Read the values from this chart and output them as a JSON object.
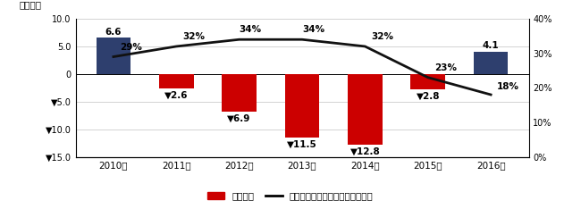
{
  "years": [
    "2010年",
    "2011年",
    "2012年",
    "2013年",
    "2014年",
    "2015年",
    "2016年"
  ],
  "trade_balance": [
    6.6,
    -2.6,
    -6.9,
    -11.5,
    -12.8,
    -2.8,
    4.1
  ],
  "mineral_ratio": [
    29,
    32,
    34,
    34,
    32,
    23,
    18
  ],
  "bar_colors": [
    "#2e3f6e",
    "#cc0000",
    "#cc0000",
    "#cc0000",
    "#cc0000",
    "#cc0000",
    "#2e3f6e"
  ],
  "bar_labels": [
    "6.6",
    "▼2.6",
    "▼6.9",
    "▼11.5",
    "▼12.8",
    "▼2.8",
    "4.1"
  ],
  "ratio_labels": [
    "29%",
    "32%",
    "34%",
    "34%",
    "32%",
    "23%",
    "18%"
  ],
  "ylabel_left": "（兆円）",
  "ylim_left": [
    -15.0,
    10.0
  ],
  "ylim_right": [
    0,
    40
  ],
  "yticks_left": [
    10.0,
    5.0,
    0.0,
    -5.0,
    -10.0,
    -15.0
  ],
  "ytick_labels_left": [
    "10.0",
    "5.0",
    "0",
    "▼5.0",
    "▼10.0",
    "▼15.0"
  ],
  "yticks_right": [
    0,
    10,
    20,
    30,
    40
  ],
  "ytick_labels_right": [
    "0%",
    "10%",
    "20%",
    "30%",
    "40%"
  ],
  "legend_bar": "貿易収支",
  "legend_line": "輸入額に占める銃物性燃料の割合",
  "background_color": "#ffffff",
  "grid_color": "#cccccc",
  "line_color": "#111111",
  "ratio_label_offsets_x": [
    0.1,
    0.1,
    0.0,
    0.0,
    0.1,
    0.1,
    0.1
  ],
  "ratio_label_offsets_y": [
    1.5,
    1.5,
    1.5,
    1.5,
    1.5,
    1.5,
    1.0
  ]
}
